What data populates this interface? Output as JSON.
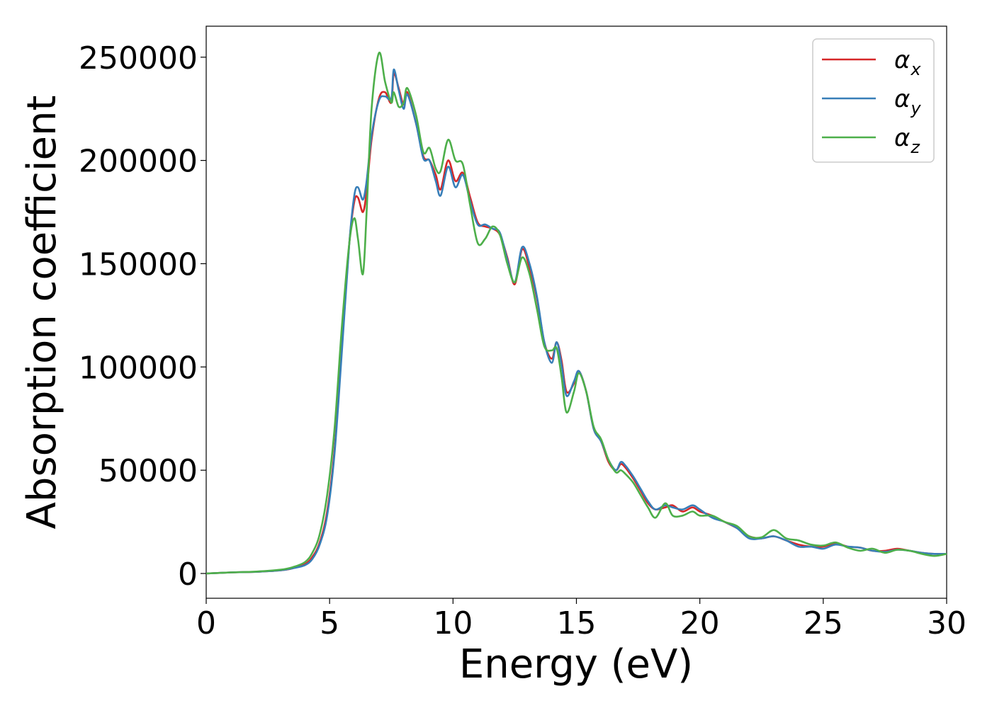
{
  "chart_data": {
    "type": "line",
    "title": "",
    "xlabel": "Energy (eV)",
    "ylabel": "Absorption coefficient",
    "xlim": [
      0,
      30
    ],
    "ylim": [
      -12000,
      265000
    ],
    "xticks": [
      0,
      5,
      10,
      15,
      20,
      25,
      30
    ],
    "xtick_labels": [
      "0",
      "5",
      "10",
      "15",
      "20",
      "25",
      "30"
    ],
    "yticks": [
      0,
      50000,
      100000,
      150000,
      200000,
      250000
    ],
    "ytick_labels": [
      "0",
      "50000",
      "100000",
      "150000",
      "200000",
      "250000"
    ],
    "grid": false,
    "legend_position": "top-right",
    "series": [
      {
        "name": "α_x",
        "label_main": "α",
        "label_sub": "x",
        "color": "#d62728",
        "x": [
          0,
          1,
          2,
          3,
          3.5,
          4,
          4.3,
          4.6,
          4.9,
          5.2,
          5.5,
          5.8,
          6.0,
          6.15,
          6.35,
          6.5,
          6.7,
          7.0,
          7.25,
          7.5,
          7.6,
          7.8,
          8.0,
          8.15,
          8.5,
          8.8,
          9.05,
          9.3,
          9.5,
          9.8,
          10.1,
          10.4,
          10.7,
          11.0,
          11.3,
          11.6,
          11.9,
          12.2,
          12.5,
          12.8,
          13.1,
          13.4,
          13.7,
          14.0,
          14.2,
          14.4,
          14.6,
          14.9,
          15.1,
          15.4,
          15.7,
          16.0,
          16.3,
          16.6,
          16.8,
          17.0,
          17.3,
          17.6,
          17.9,
          18.2,
          18.6,
          18.9,
          19.3,
          19.7,
          20.0,
          20.5,
          21.0,
          21.5,
          22.0,
          22.5,
          23.0,
          23.5,
          24.0,
          24.5,
          25.0,
          25.5,
          26.0,
          26.5,
          27.0,
          27.5,
          28.0,
          28.5,
          29.0,
          29.5,
          30.0
        ],
        "values": [
          0,
          500,
          800,
          1500,
          2500,
          4500,
          8000,
          15000,
          30000,
          60000,
          110000,
          160000,
          180000,
          182000,
          175000,
          185000,
          210000,
          230000,
          233000,
          228000,
          242000,
          235000,
          227000,
          233000,
          218000,
          202000,
          200000,
          193000,
          186000,
          200000,
          190000,
          194000,
          182000,
          170000,
          168000,
          167000,
          164000,
          153000,
          140000,
          157000,
          148000,
          133000,
          112000,
          104000,
          112000,
          103000,
          88000,
          92000,
          98000,
          88000,
          70000,
          64000,
          54000,
          50000,
          53000,
          51000,
          46000,
          40000,
          34000,
          31000,
          32000,
          33000,
          30000,
          32000,
          30000,
          28000,
          25000,
          22000,
          18000,
          17000,
          18000,
          16000,
          14000,
          13000,
          13000,
          14500,
          13000,
          12500,
          11000,
          11000,
          12000,
          11000,
          10000,
          9500,
          9500
        ]
      },
      {
        "name": "α_y",
        "label_main": "α",
        "label_sub": "y",
        "color": "#377eb8",
        "x": [
          0,
          1,
          2,
          3,
          3.5,
          4,
          4.3,
          4.6,
          4.9,
          5.2,
          5.5,
          5.8,
          6.0,
          6.15,
          6.35,
          6.5,
          6.7,
          7.0,
          7.25,
          7.5,
          7.6,
          7.8,
          8.0,
          8.15,
          8.5,
          8.8,
          9.05,
          9.3,
          9.5,
          9.8,
          10.1,
          10.4,
          10.7,
          11.0,
          11.3,
          11.6,
          11.9,
          12.2,
          12.5,
          12.8,
          13.1,
          13.4,
          13.7,
          14.0,
          14.2,
          14.4,
          14.6,
          14.9,
          15.1,
          15.4,
          15.7,
          16.0,
          16.3,
          16.6,
          16.8,
          17.0,
          17.3,
          17.6,
          17.9,
          18.2,
          18.6,
          18.9,
          19.3,
          19.7,
          20.0,
          20.5,
          21.0,
          21.5,
          22.0,
          22.5,
          23.0,
          23.5,
          24.0,
          24.5,
          25.0,
          25.5,
          26.0,
          26.5,
          27.0,
          27.5,
          28.0,
          28.5,
          29.0,
          29.5,
          30.0
        ],
        "values": [
          0,
          500,
          800,
          1500,
          2500,
          4000,
          7000,
          14000,
          28000,
          58000,
          108000,
          160000,
          183000,
          187000,
          181000,
          190000,
          212000,
          229000,
          231000,
          230000,
          244000,
          234000,
          225000,
          232000,
          218000,
          201000,
          200000,
          190000,
          183000,
          197000,
          187000,
          193000,
          180000,
          169000,
          169000,
          167000,
          165000,
          152000,
          141000,
          158000,
          150000,
          134000,
          112000,
          102000,
          112000,
          101000,
          86000,
          93000,
          98000,
          88000,
          70000,
          64000,
          55000,
          50000,
          54000,
          52000,
          47000,
          41000,
          35000,
          31000,
          33000,
          32000,
          31000,
          33000,
          31000,
          27000,
          25000,
          22000,
          17000,
          17000,
          18000,
          16000,
          13000,
          13000,
          12000,
          14000,
          13000,
          12500,
          11000,
          10500,
          11500,
          11000,
          10000,
          9500,
          9500
        ]
      },
      {
        "name": "α_z",
        "label_main": "α",
        "label_sub": "z",
        "color": "#4daf4a",
        "x": [
          0,
          1,
          2,
          3,
          3.5,
          4,
          4.3,
          4.6,
          4.9,
          5.2,
          5.5,
          5.8,
          6.0,
          6.15,
          6.35,
          6.5,
          6.7,
          7.0,
          7.25,
          7.5,
          7.6,
          7.8,
          8.0,
          8.15,
          8.5,
          8.8,
          9.05,
          9.3,
          9.5,
          9.8,
          10.1,
          10.4,
          10.7,
          11.0,
          11.3,
          11.6,
          11.9,
          12.2,
          12.5,
          12.8,
          13.1,
          13.4,
          13.7,
          14.0,
          14.2,
          14.4,
          14.6,
          14.9,
          15.1,
          15.4,
          15.7,
          16.0,
          16.3,
          16.6,
          16.8,
          17.0,
          17.3,
          17.6,
          17.9,
          18.2,
          18.6,
          18.9,
          19.3,
          19.7,
          20.0,
          20.5,
          21.0,
          21.5,
          22.0,
          22.5,
          23.0,
          23.5,
          24.0,
          24.5,
          25.0,
          25.5,
          26.0,
          26.5,
          27.0,
          27.5,
          28.0,
          28.5,
          29.0,
          29.5,
          30.0
        ],
        "values": [
          0,
          500,
          900,
          1800,
          3000,
          5500,
          10000,
          19000,
          38000,
          70000,
          120000,
          160000,
          172000,
          162000,
          145000,
          175000,
          225000,
          252000,
          238000,
          228000,
          233000,
          226000,
          228000,
          235000,
          222000,
          204000,
          206000,
          196000,
          195000,
          210000,
          200000,
          198000,
          178000,
          160000,
          162000,
          168000,
          164000,
          150000,
          141000,
          153000,
          145000,
          128000,
          110000,
          108000,
          109000,
          95000,
          78000,
          88000,
          97000,
          88000,
          71000,
          65000,
          55000,
          49000,
          50000,
          48000,
          44000,
          38000,
          32000,
          27000,
          34000,
          28000,
          28000,
          30000,
          28000,
          28000,
          25000,
          23000,
          18000,
          17500,
          21000,
          17000,
          16000,
          14000,
          13500,
          15000,
          12500,
          11000,
          12000,
          10000,
          11500,
          11000,
          9500,
          8500,
          9500
        ]
      }
    ]
  }
}
